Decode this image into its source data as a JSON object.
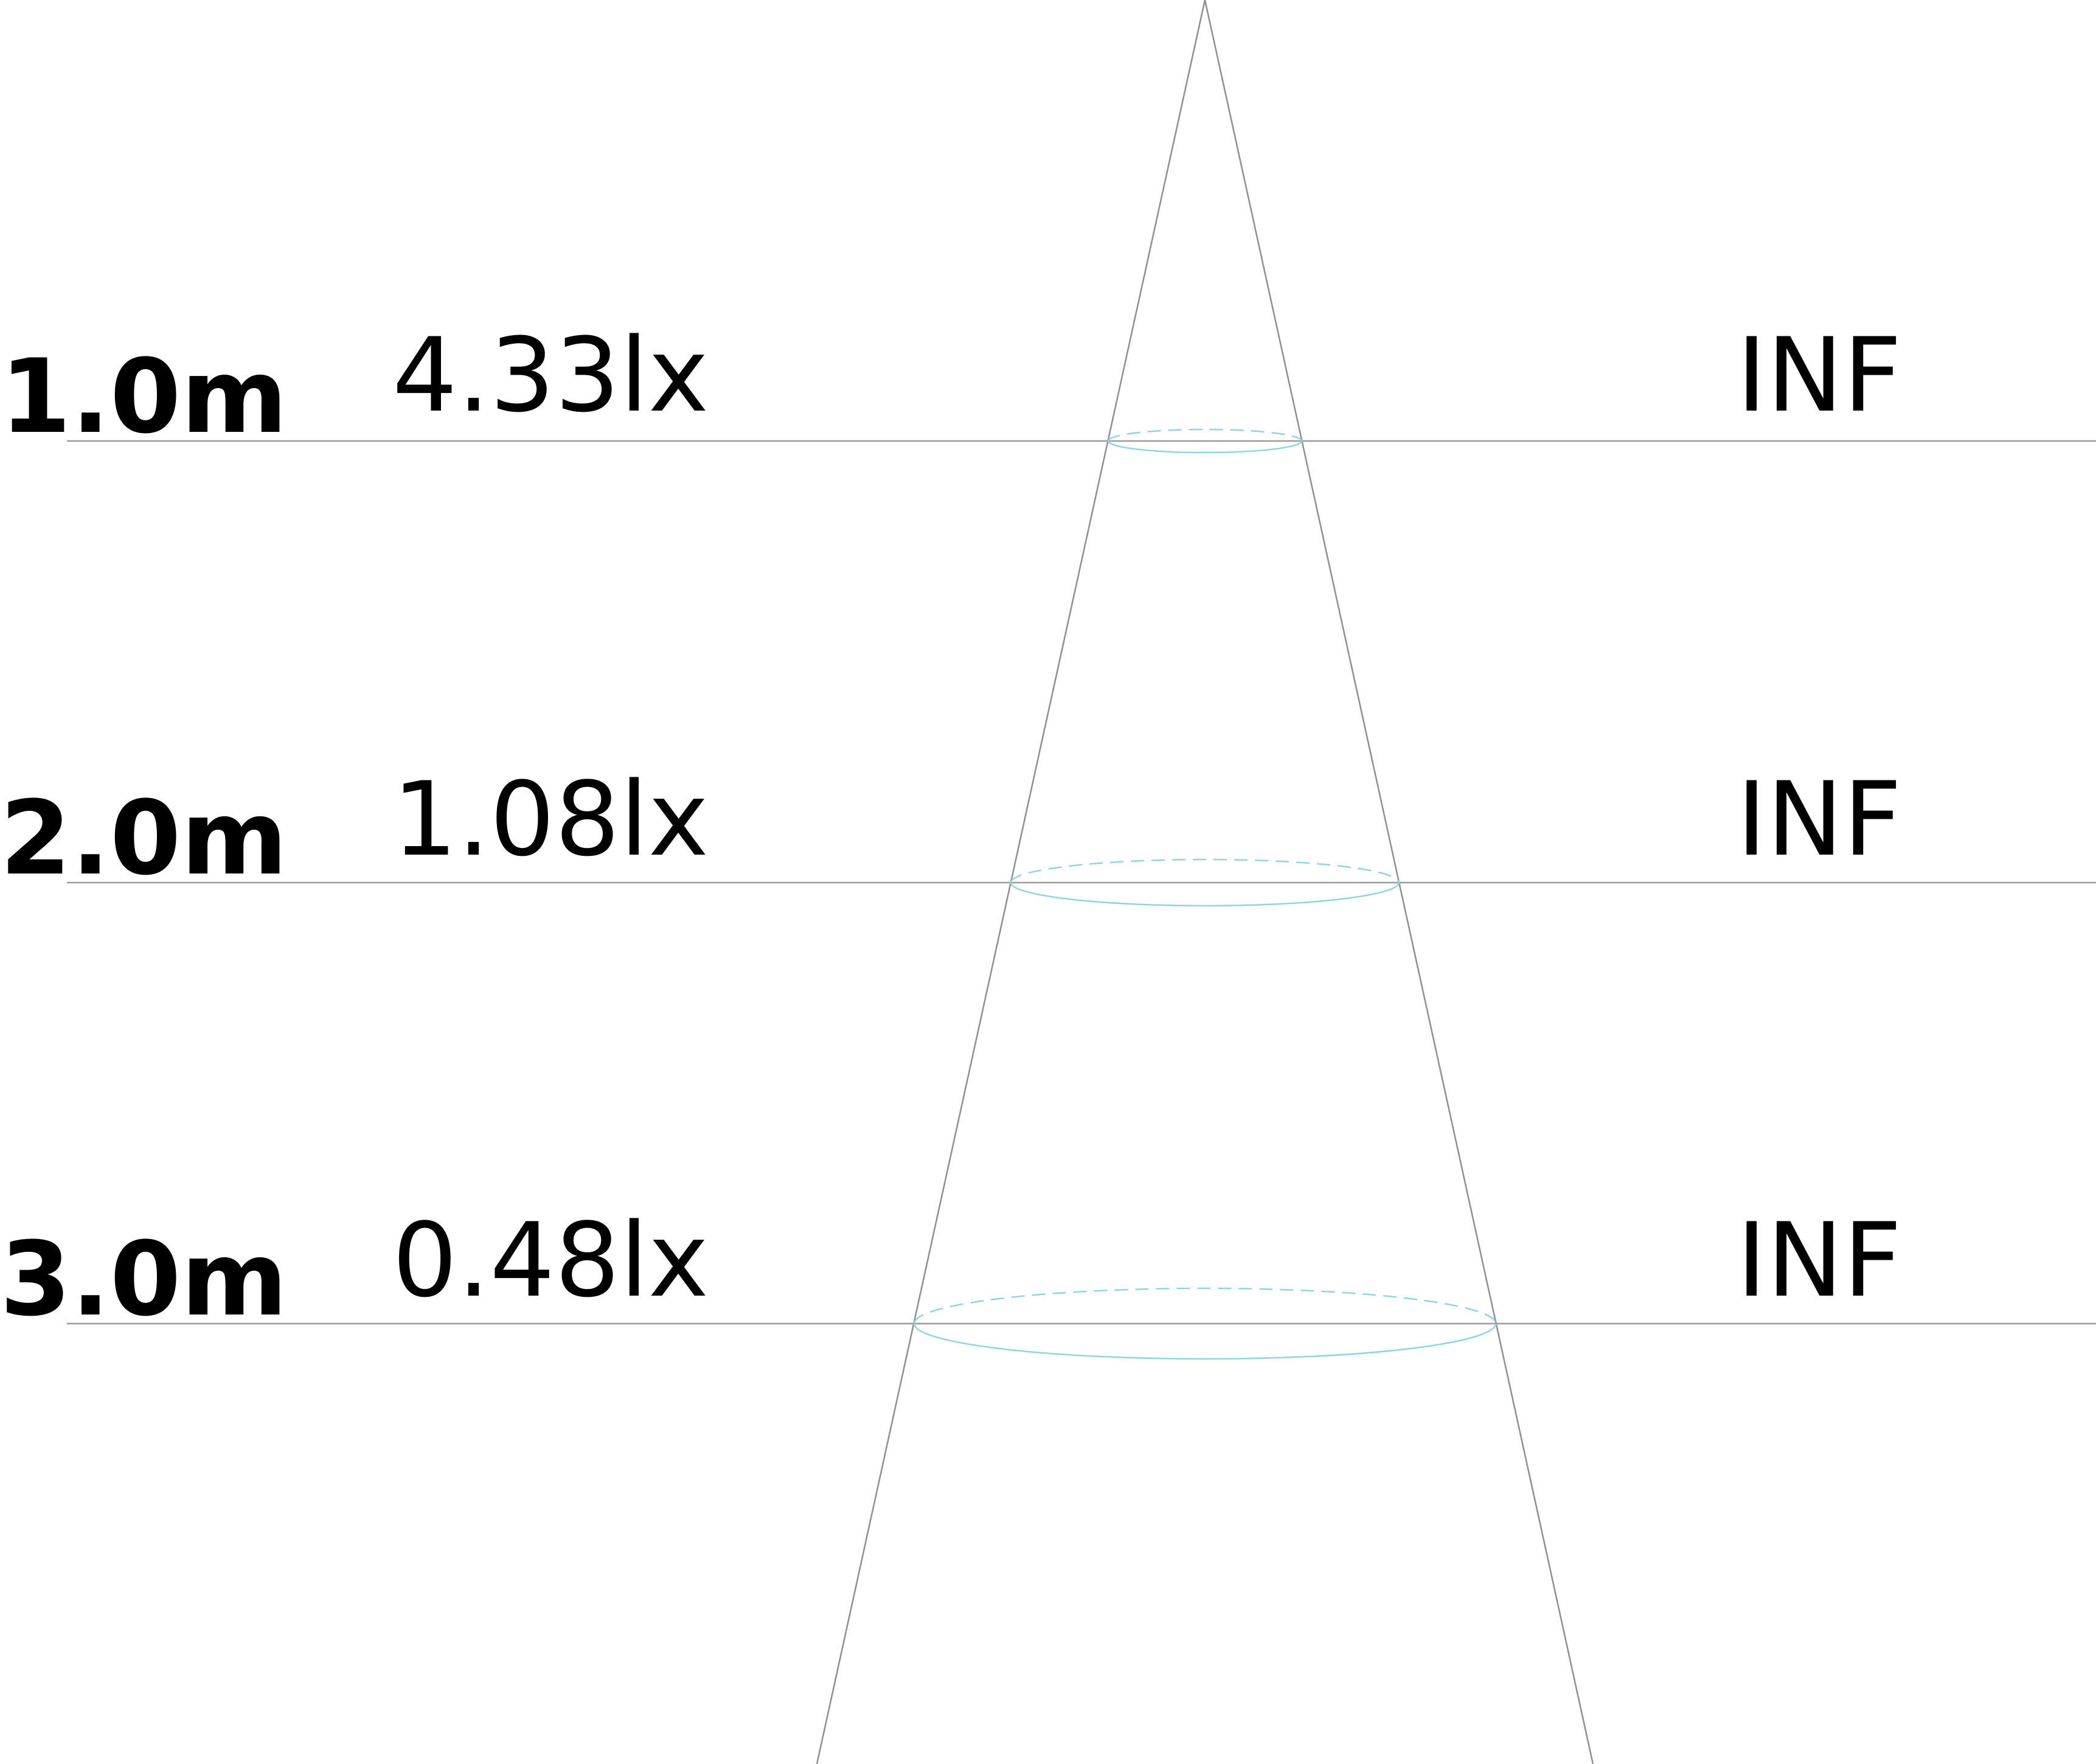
{
  "levels": [
    {
      "distance": "1.0m",
      "illuminance": "4.33lx",
      "diameter": "INF"
    },
    {
      "distance": "2.0m",
      "illuminance": "1.08lx",
      "diameter": "INF"
    },
    {
      "distance": "3.0m",
      "illuminance": "0.48lx",
      "diameter": "INF"
    }
  ],
  "colors": {
    "line": "#9a9a9a",
    "cone": "#8f8f8f",
    "spot": "#8ed6df",
    "text": "#000000"
  }
}
